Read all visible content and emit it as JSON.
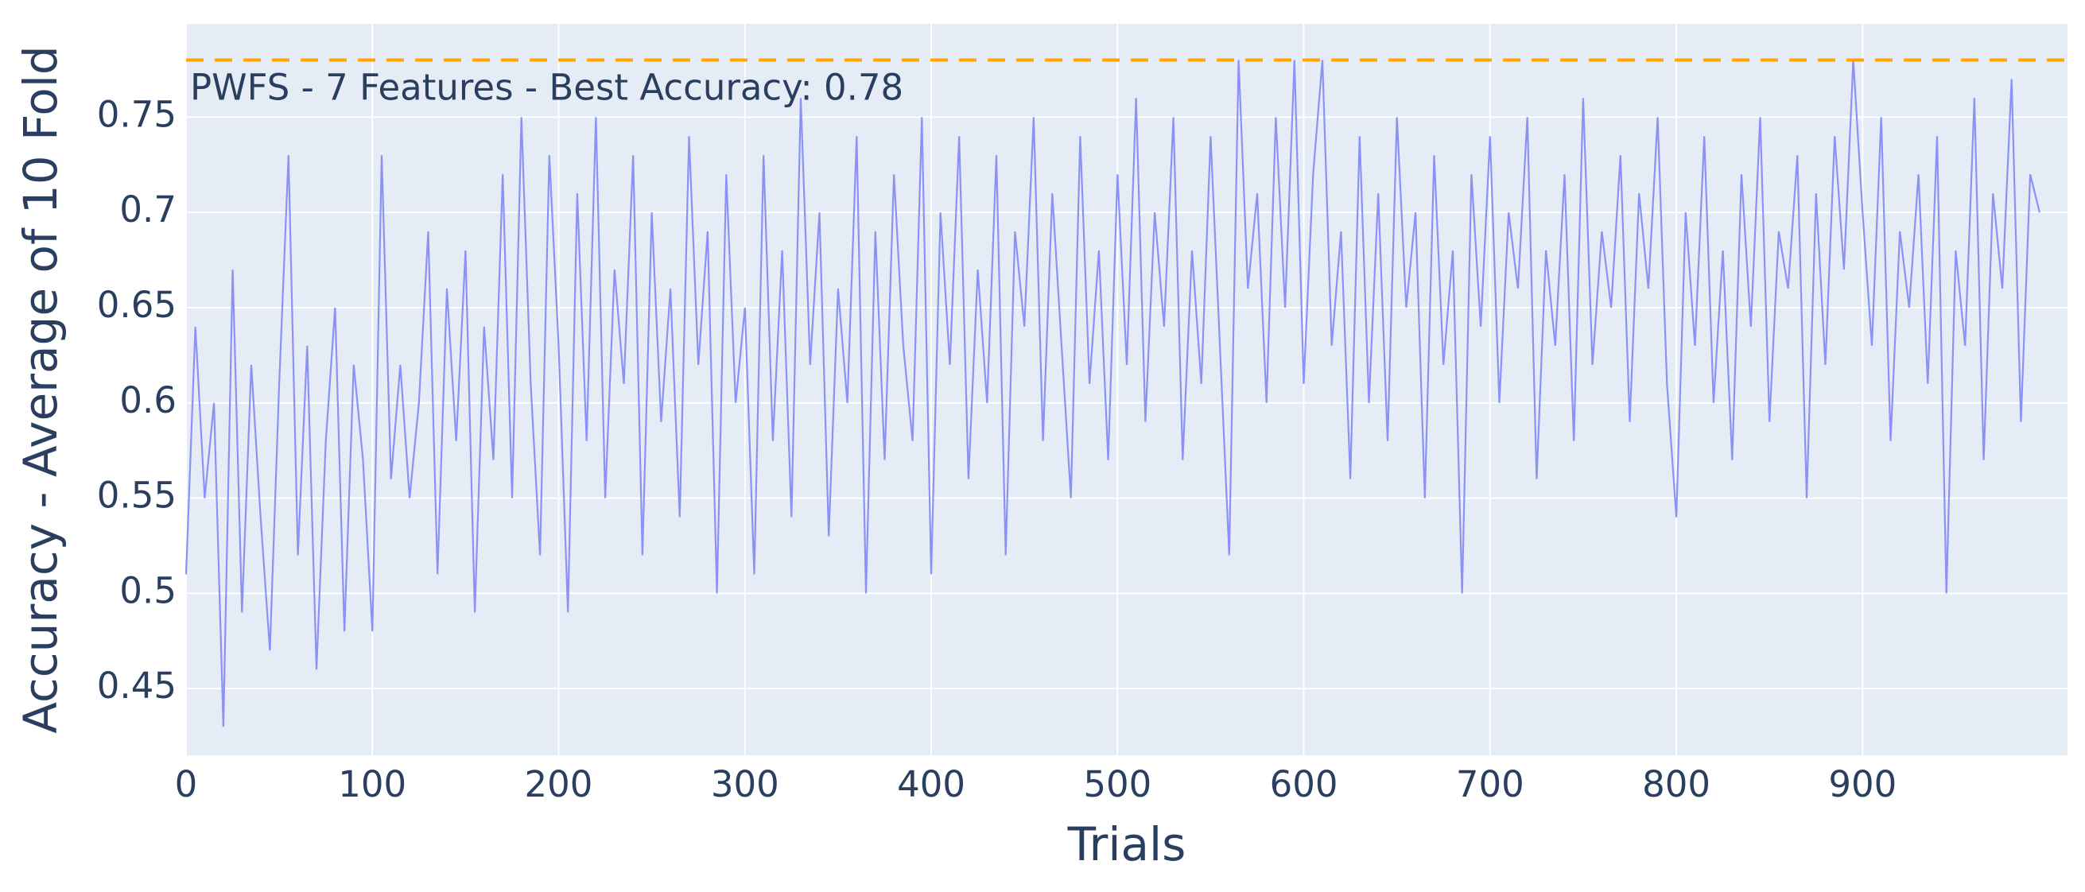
{
  "chart_data": {
    "type": "line",
    "xlabel": "Trials",
    "ylabel": "Accuracy - Average of 10 Fold",
    "annotation": "PWFS - 7 Features - Best Accuracy: 0.78",
    "reference_line": {
      "value": 0.78,
      "color": "#FFA500"
    },
    "color": "#8b92f6",
    "background": "#e5ecf6",
    "grid": true,
    "xlim": [
      0,
      1010
    ],
    "ylim": [
      0.415,
      0.799
    ],
    "xticks": [
      0,
      100,
      200,
      300,
      400,
      500,
      600,
      700,
      800,
      900
    ],
    "yticks": [
      0.45,
      0.5,
      0.55,
      0.6,
      0.65,
      0.7,
      0.75
    ],
    "x": [
      0,
      5,
      10,
      15,
      20,
      25,
      30,
      35,
      40,
      45,
      50,
      55,
      60,
      65,
      70,
      75,
      80,
      85,
      90,
      95,
      100,
      105,
      110,
      115,
      120,
      125,
      130,
      135,
      140,
      145,
      150,
      155,
      160,
      165,
      170,
      175,
      180,
      185,
      190,
      195,
      200,
      205,
      210,
      215,
      220,
      225,
      230,
      235,
      240,
      245,
      250,
      255,
      260,
      265,
      270,
      275,
      280,
      285,
      290,
      295,
      300,
      305,
      310,
      315,
      320,
      325,
      330,
      335,
      340,
      345,
      350,
      355,
      360,
      365,
      370,
      375,
      380,
      385,
      390,
      395,
      400,
      405,
      410,
      415,
      420,
      425,
      430,
      435,
      440,
      445,
      450,
      455,
      460,
      465,
      470,
      475,
      480,
      485,
      490,
      495,
      500,
      505,
      510,
      515,
      520,
      525,
      530,
      535,
      540,
      545,
      550,
      555,
      560,
      565,
      570,
      575,
      580,
      585,
      590,
      595,
      600,
      605,
      610,
      615,
      620,
      625,
      630,
      635,
      640,
      645,
      650,
      655,
      660,
      665,
      670,
      675,
      680,
      685,
      690,
      695,
      700,
      705,
      710,
      715,
      720,
      725,
      730,
      735,
      740,
      745,
      750,
      755,
      760,
      765,
      770,
      775,
      780,
      785,
      790,
      795,
      800,
      805,
      810,
      815,
      820,
      825,
      830,
      835,
      840,
      845,
      850,
      855,
      860,
      865,
      870,
      875,
      880,
      885,
      890,
      895,
      900,
      905,
      910,
      915,
      920,
      925,
      930,
      935,
      940,
      945,
      950,
      955,
      960,
      965,
      970,
      975,
      980,
      985,
      990,
      995
    ],
    "values": [
      0.51,
      0.64,
      0.55,
      0.6,
      0.43,
      0.67,
      0.49,
      0.62,
      0.54,
      0.47,
      0.61,
      0.73,
      0.52,
      0.63,
      0.46,
      0.58,
      0.65,
      0.48,
      0.62,
      0.57,
      0.48,
      0.73,
      0.56,
      0.62,
      0.55,
      0.6,
      0.69,
      0.51,
      0.66,
      0.58,
      0.68,
      0.49,
      0.64,
      0.57,
      0.72,
      0.55,
      0.75,
      0.61,
      0.52,
      0.73,
      0.63,
      0.49,
      0.71,
      0.58,
      0.75,
      0.55,
      0.67,
      0.61,
      0.73,
      0.52,
      0.7,
      0.59,
      0.66,
      0.54,
      0.74,
      0.62,
      0.69,
      0.5,
      0.72,
      0.6,
      0.65,
      0.51,
      0.73,
      0.58,
      0.68,
      0.54,
      0.76,
      0.62,
      0.7,
      0.53,
      0.66,
      0.6,
      0.74,
      0.5,
      0.69,
      0.57,
      0.72,
      0.63,
      0.58,
      0.75,
      0.51,
      0.7,
      0.62,
      0.74,
      0.56,
      0.67,
      0.6,
      0.73,
      0.52,
      0.69,
      0.64,
      0.75,
      0.58,
      0.71,
      0.63,
      0.55,
      0.74,
      0.61,
      0.68,
      0.57,
      0.72,
      0.62,
      0.76,
      0.59,
      0.7,
      0.64,
      0.75,
      0.57,
      0.68,
      0.61,
      0.74,
      0.63,
      0.52,
      0.78,
      0.66,
      0.71,
      0.6,
      0.75,
      0.65,
      0.78,
      0.61,
      0.72,
      0.78,
      0.63,
      0.69,
      0.56,
      0.74,
      0.6,
      0.71,
      0.58,
      0.75,
      0.65,
      0.7,
      0.55,
      0.73,
      0.62,
      0.68,
      0.5,
      0.72,
      0.64,
      0.74,
      0.6,
      0.7,
      0.66,
      0.75,
      0.56,
      0.68,
      0.63,
      0.72,
      0.58,
      0.76,
      0.62,
      0.69,
      0.65,
      0.73,
      0.59,
      0.71,
      0.66,
      0.75,
      0.61,
      0.54,
      0.7,
      0.63,
      0.74,
      0.6,
      0.68,
      0.57,
      0.72,
      0.64,
      0.75,
      0.59,
      0.69,
      0.66,
      0.73,
      0.55,
      0.71,
      0.62,
      0.74,
      0.67,
      0.78,
      0.7,
      0.63,
      0.75,
      0.58,
      0.69,
      0.65,
      0.72,
      0.61,
      0.74,
      0.5,
      0.68,
      0.63,
      0.76,
      0.57,
      0.71,
      0.66,
      0.77,
      0.59,
      0.72,
      0.7
    ]
  }
}
